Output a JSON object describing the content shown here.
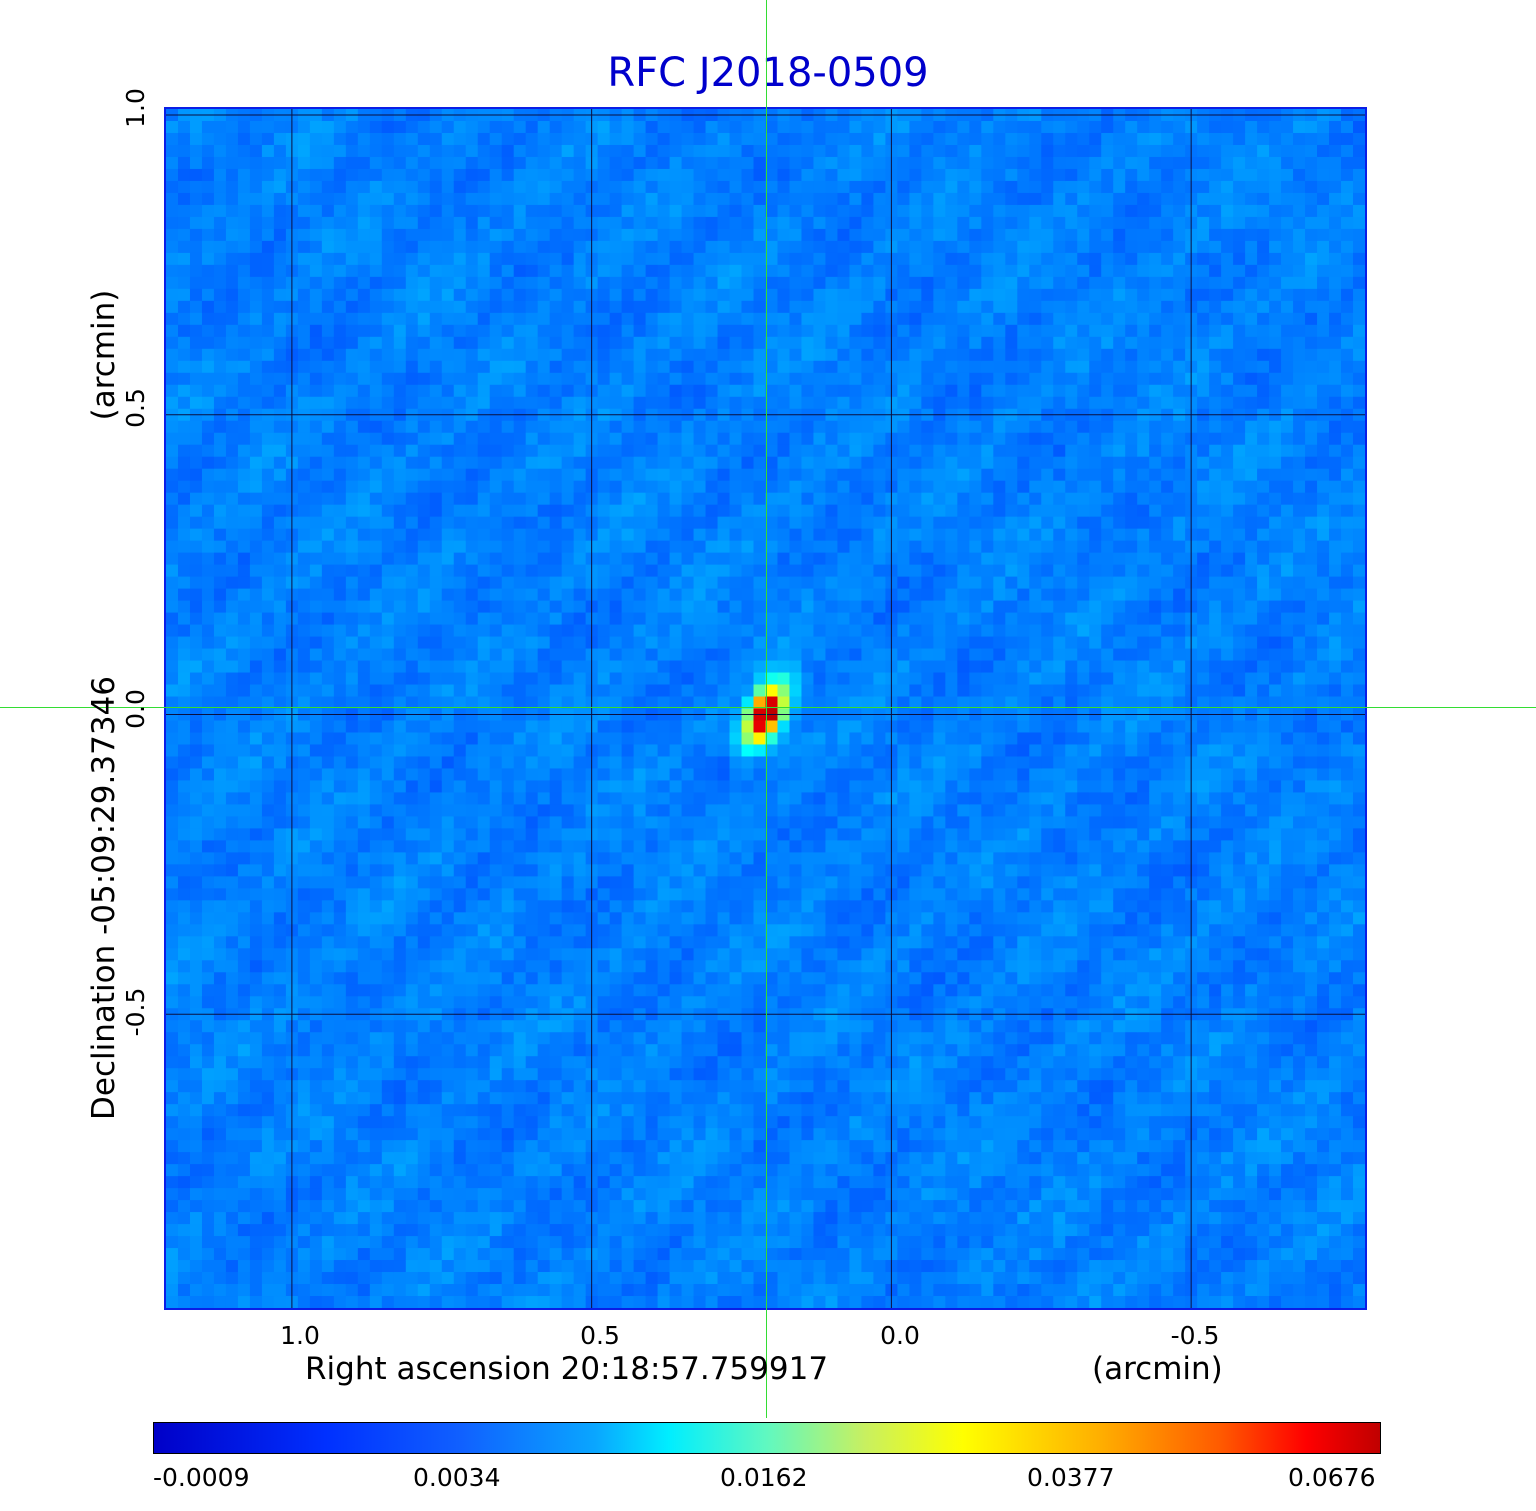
{
  "chart_data": {
    "type": "heatmap",
    "title": "RFC J2018-0509",
    "xlabel": "Right ascension  20:18:57.759917",
    "xunit": "(arcmin)",
    "ylabel": "Declination  -05:09:29.37346",
    "yunit": "(arcmin)",
    "x_ticks": [
      "1.0",
      "0.5",
      "0.0",
      "-0.5"
    ],
    "y_ticks": [
      "1.0",
      "0.5",
      "0.0",
      "-0.5"
    ],
    "x_tick_values": [
      1.0,
      0.5,
      0.0,
      -0.5
    ],
    "y_tick_values": [
      1.0,
      0.5,
      0.0,
      -0.5
    ],
    "xlim": [
      1.21,
      -0.79
    ],
    "ylim": [
      -0.99,
      1.01
    ],
    "grid": true,
    "colormap": "jet",
    "colorbar_ticks": [
      "-0.0009",
      "0.0034",
      "0.0162",
      "0.0377",
      "0.0676"
    ],
    "colorbar_range": [
      -0.0009,
      0.0676
    ],
    "source_peak": {
      "x": 0.21,
      "y": 0.0,
      "value": 0.0676
    },
    "crosshair": {
      "x": 0.21,
      "y": 0.0
    }
  }
}
